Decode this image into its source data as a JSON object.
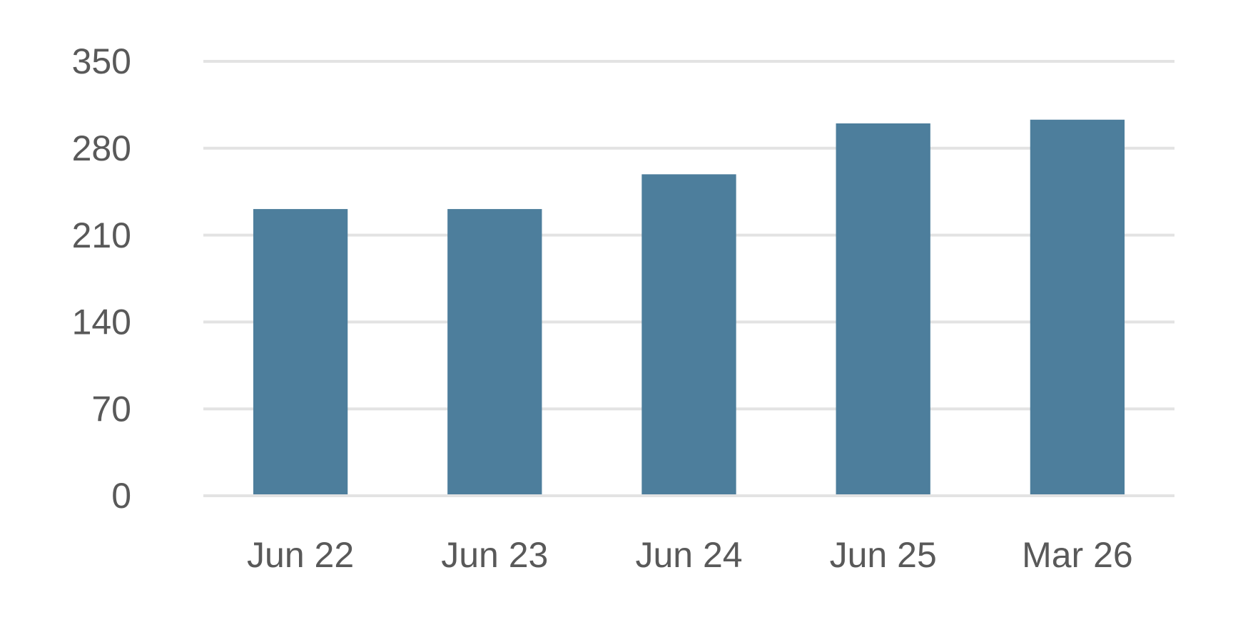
{
  "chart_data": {
    "type": "bar",
    "categories": [
      "Jun 22",
      "Jun 23",
      "Jun 24",
      "Jun 25",
      "Mar 26"
    ],
    "values": [
      231,
      231,
      259,
      300,
      303
    ],
    "color": "#4d7e9c",
    "ylim": [
      0,
      350
    ],
    "yticks": [
      0,
      70,
      140,
      210,
      280,
      350
    ],
    "grid": true
  }
}
